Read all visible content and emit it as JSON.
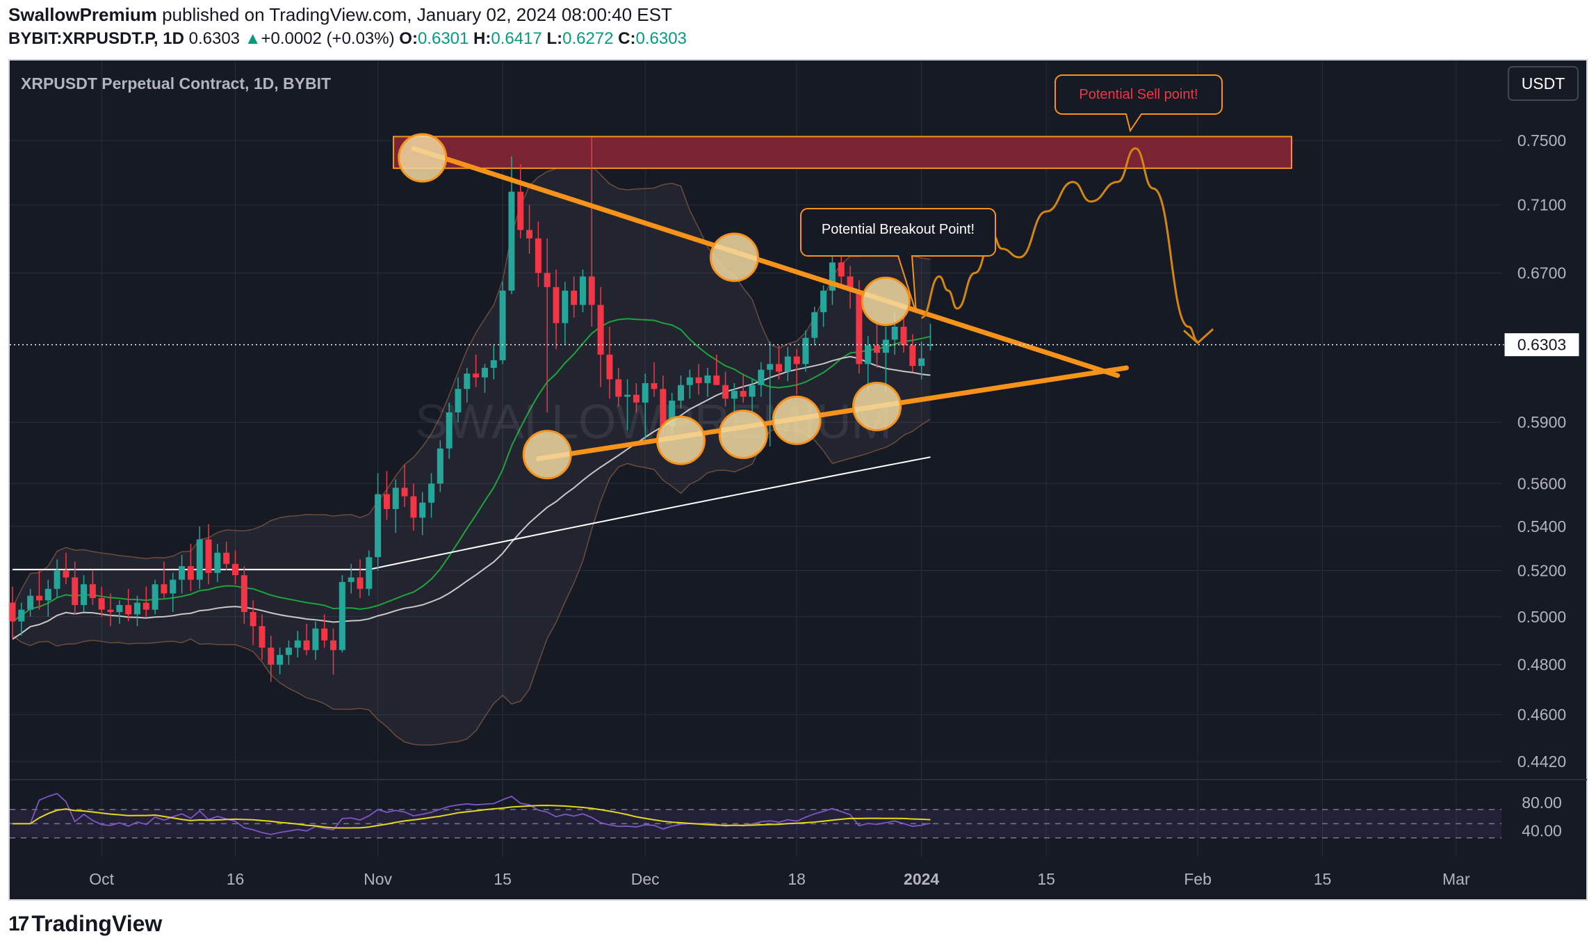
{
  "header": {
    "author": "SwallowPremium",
    "published_text": "published on TradingView.com, January 02, 2024 08:00:40 EST",
    "symbol": "BYBIT:XRPUSDT.P, 1D",
    "price": "0.6303",
    "change_arrow": "▲",
    "change": "+0.0002 (+0.03%)",
    "o_label": "O:",
    "o_value": "0.6301",
    "h_label": "H:",
    "h_value": "0.6417",
    "l_label": "L:",
    "l_value": "0.6272",
    "c_label": "C:",
    "c_value": "0.6303"
  },
  "chart_title": "XRPUSDT Perpetual Contract, 1D, BYBIT",
  "currency_button": "USDT",
  "current_price_label": "0.6303",
  "watermark": "SWALLOWPREMIUM",
  "annotations": {
    "sell": "Potential Sell point!",
    "breakout": "Potential Breakout Point!"
  },
  "footer": {
    "brand": "TradingView",
    "logo_glyph": "17"
  },
  "colors": {
    "background": "#161a25",
    "up": "#26a69a",
    "down": "#f23645",
    "trendline": "#f7931a",
    "zone_fill": "#7a2433",
    "zone_border": "#f7931a",
    "rsi_line": "#7e57c2",
    "rsi_ma": "#e5d81d"
  },
  "chart_data": {
    "type": "candlestick",
    "title": "XRPUSDT Perpetual Contract, 1D, BYBIT",
    "y_axis_ticks": [
      "0.7500",
      "0.7100",
      "0.6700",
      "0.5900",
      "0.5600",
      "0.5400",
      "0.5200",
      "0.5000",
      "0.4800",
      "0.4600",
      "0.4420"
    ],
    "x_axis_ticks": [
      "Oct",
      "16",
      "Nov",
      "15",
      "Dec",
      "18",
      "2024",
      "15",
      "Feb",
      "15",
      "Mar"
    ],
    "rsi_ticks": [
      "80.00",
      "40.00"
    ],
    "ylim": [
      0.432,
      0.768
    ],
    "scale": "log",
    "current_price": 0.6303,
    "resistance_zone": [
      0.7325,
      0.7525
    ],
    "descending_trendline": [
      {
        "date": "2023-11-05",
        "price": 0.745
      },
      {
        "date": "2024-01-23",
        "price": 0.614
      }
    ],
    "ascending_trendline": [
      {
        "date": "2023-11-19",
        "price": 0.572
      },
      {
        "date": "2024-01-24",
        "price": 0.618
      }
    ],
    "touch_points_upper": [
      {
        "date": "2023-11-06",
        "price": 0.739
      },
      {
        "date": "2023-12-11",
        "price": 0.679
      },
      {
        "date": "2023-12-28",
        "price": 0.654
      }
    ],
    "touch_points_lower": [
      {
        "date": "2023-11-20",
        "price": 0.574
      },
      {
        "date": "2023-12-05",
        "price": 0.581
      },
      {
        "date": "2023-12-12",
        "price": 0.584
      },
      {
        "date": "2023-12-18",
        "price": 0.591
      },
      {
        "date": "2023-12-27",
        "price": 0.598
      }
    ],
    "projected_path": [
      {
        "date": "2024-01-01",
        "price": 0.645
      },
      {
        "date": "2024-01-03",
        "price": 0.668
      },
      {
        "date": "2024-01-04",
        "price": 0.66
      },
      {
        "date": "2024-01-05",
        "price": 0.65
      },
      {
        "date": "2024-01-07",
        "price": 0.67
      },
      {
        "date": "2024-01-09",
        "price": 0.692
      },
      {
        "date": "2024-01-10",
        "price": 0.684
      },
      {
        "date": "2024-01-12",
        "price": 0.679
      },
      {
        "date": "2024-01-15",
        "price": 0.706
      },
      {
        "date": "2024-01-18",
        "price": 0.724
      },
      {
        "date": "2024-01-20",
        "price": 0.712
      },
      {
        "date": "2024-01-23",
        "price": 0.724
      },
      {
        "date": "2024-01-25",
        "price": 0.745
      },
      {
        "date": "2024-01-27",
        "price": 0.72
      },
      {
        "date": "2024-01-31",
        "price": 0.64
      },
      {
        "date": "2024-02-01",
        "price": 0.632
      }
    ],
    "candles": [
      {
        "date": "2023-09-21",
        "o": 0.506,
        "h": 0.513,
        "l": 0.491,
        "c": 0.498
      },
      {
        "date": "2023-09-22",
        "o": 0.498,
        "h": 0.506,
        "l": 0.492,
        "c": 0.503
      },
      {
        "date": "2023-09-23",
        "o": 0.503,
        "h": 0.512,
        "l": 0.5,
        "c": 0.509
      },
      {
        "date": "2023-09-24",
        "o": 0.509,
        "h": 0.52,
        "l": 0.503,
        "c": 0.507
      },
      {
        "date": "2023-09-25",
        "o": 0.507,
        "h": 0.516,
        "l": 0.5,
        "c": 0.512
      },
      {
        "date": "2023-09-26",
        "o": 0.512,
        "h": 0.525,
        "l": 0.508,
        "c": 0.52
      },
      {
        "date": "2023-09-27",
        "o": 0.52,
        "h": 0.528,
        "l": 0.514,
        "c": 0.517
      },
      {
        "date": "2023-09-28",
        "o": 0.517,
        "h": 0.524,
        "l": 0.501,
        "c": 0.505
      },
      {
        "date": "2023-09-29",
        "o": 0.505,
        "h": 0.518,
        "l": 0.502,
        "c": 0.514
      },
      {
        "date": "2023-09-30",
        "o": 0.514,
        "h": 0.52,
        "l": 0.505,
        "c": 0.508
      },
      {
        "date": "2023-10-01",
        "o": 0.508,
        "h": 0.513,
        "l": 0.5,
        "c": 0.503
      },
      {
        "date": "2023-10-02",
        "o": 0.503,
        "h": 0.51,
        "l": 0.496,
        "c": 0.502
      },
      {
        "date": "2023-10-03",
        "o": 0.502,
        "h": 0.507,
        "l": 0.497,
        "c": 0.505
      },
      {
        "date": "2023-10-04",
        "o": 0.505,
        "h": 0.512,
        "l": 0.498,
        "c": 0.501
      },
      {
        "date": "2023-10-05",
        "o": 0.501,
        "h": 0.509,
        "l": 0.496,
        "c": 0.506
      },
      {
        "date": "2023-10-06",
        "o": 0.506,
        "h": 0.513,
        "l": 0.5,
        "c": 0.503
      },
      {
        "date": "2023-10-07",
        "o": 0.503,
        "h": 0.516,
        "l": 0.501,
        "c": 0.514
      },
      {
        "date": "2023-10-08",
        "o": 0.514,
        "h": 0.524,
        "l": 0.508,
        "c": 0.51
      },
      {
        "date": "2023-10-09",
        "o": 0.51,
        "h": 0.519,
        "l": 0.502,
        "c": 0.516
      },
      {
        "date": "2023-10-10",
        "o": 0.516,
        "h": 0.527,
        "l": 0.51,
        "c": 0.522
      },
      {
        "date": "2023-10-11",
        "o": 0.522,
        "h": 0.532,
        "l": 0.511,
        "c": 0.516
      },
      {
        "date": "2023-10-12",
        "o": 0.516,
        "h": 0.54,
        "l": 0.512,
        "c": 0.534
      },
      {
        "date": "2023-10-13",
        "o": 0.534,
        "h": 0.541,
        "l": 0.514,
        "c": 0.519
      },
      {
        "date": "2023-10-14",
        "o": 0.519,
        "h": 0.532,
        "l": 0.515,
        "c": 0.528
      },
      {
        "date": "2023-10-15",
        "o": 0.528,
        "h": 0.533,
        "l": 0.52,
        "c": 0.523
      },
      {
        "date": "2023-10-16",
        "o": 0.523,
        "h": 0.529,
        "l": 0.514,
        "c": 0.518
      },
      {
        "date": "2023-10-17",
        "o": 0.518,
        "h": 0.522,
        "l": 0.497,
        "c": 0.502
      },
      {
        "date": "2023-10-18",
        "o": 0.502,
        "h": 0.507,
        "l": 0.488,
        "c": 0.496
      },
      {
        "date": "2023-10-19",
        "o": 0.496,
        "h": 0.501,
        "l": 0.482,
        "c": 0.487
      },
      {
        "date": "2023-10-20",
        "o": 0.487,
        "h": 0.492,
        "l": 0.473,
        "c": 0.48
      },
      {
        "date": "2023-10-21",
        "o": 0.48,
        "h": 0.487,
        "l": 0.476,
        "c": 0.484
      },
      {
        "date": "2023-10-22",
        "o": 0.484,
        "h": 0.49,
        "l": 0.48,
        "c": 0.487
      },
      {
        "date": "2023-10-23",
        "o": 0.487,
        "h": 0.494,
        "l": 0.483,
        "c": 0.49
      },
      {
        "date": "2023-10-24",
        "o": 0.49,
        "h": 0.497,
        "l": 0.484,
        "c": 0.486
      },
      {
        "date": "2023-10-25",
        "o": 0.486,
        "h": 0.498,
        "l": 0.482,
        "c": 0.495
      },
      {
        "date": "2023-10-26",
        "o": 0.495,
        "h": 0.501,
        "l": 0.487,
        "c": 0.49
      },
      {
        "date": "2023-10-27",
        "o": 0.49,
        "h": 0.495,
        "l": 0.476,
        "c": 0.486
      },
      {
        "date": "2023-10-28",
        "o": 0.486,
        "h": 0.518,
        "l": 0.485,
        "c": 0.515
      },
      {
        "date": "2023-10-29",
        "o": 0.515,
        "h": 0.523,
        "l": 0.51,
        "c": 0.517
      },
      {
        "date": "2023-10-30",
        "o": 0.517,
        "h": 0.525,
        "l": 0.508,
        "c": 0.512
      },
      {
        "date": "2023-10-31",
        "o": 0.512,
        "h": 0.529,
        "l": 0.509,
        "c": 0.526
      },
      {
        "date": "2023-11-01",
        "o": 0.526,
        "h": 0.565,
        "l": 0.52,
        "c": 0.555
      },
      {
        "date": "2023-11-02",
        "o": 0.555,
        "h": 0.566,
        "l": 0.543,
        "c": 0.548
      },
      {
        "date": "2023-11-03",
        "o": 0.548,
        "h": 0.562,
        "l": 0.537,
        "c": 0.558
      },
      {
        "date": "2023-11-04",
        "o": 0.558,
        "h": 0.569,
        "l": 0.549,
        "c": 0.554
      },
      {
        "date": "2023-11-05",
        "o": 0.554,
        "h": 0.56,
        "l": 0.538,
        "c": 0.544
      },
      {
        "date": "2023-11-06",
        "o": 0.544,
        "h": 0.556,
        "l": 0.536,
        "c": 0.551
      },
      {
        "date": "2023-11-07",
        "o": 0.551,
        "h": 0.565,
        "l": 0.544,
        "c": 0.56
      },
      {
        "date": "2023-11-08",
        "o": 0.56,
        "h": 0.581,
        "l": 0.556,
        "c": 0.577
      },
      {
        "date": "2023-11-09",
        "o": 0.577,
        "h": 0.6,
        "l": 0.572,
        "c": 0.595
      },
      {
        "date": "2023-11-10",
        "o": 0.595,
        "h": 0.613,
        "l": 0.59,
        "c": 0.607
      },
      {
        "date": "2023-11-11",
        "o": 0.607,
        "h": 0.618,
        "l": 0.6,
        "c": 0.615
      },
      {
        "date": "2023-11-12",
        "o": 0.615,
        "h": 0.625,
        "l": 0.608,
        "c": 0.613
      },
      {
        "date": "2023-11-13",
        "o": 0.613,
        "h": 0.62,
        "l": 0.605,
        "c": 0.618
      },
      {
        "date": "2023-11-14",
        "o": 0.618,
        "h": 0.63,
        "l": 0.612,
        "c": 0.622
      },
      {
        "date": "2023-11-15",
        "o": 0.622,
        "h": 0.665,
        "l": 0.62,
        "c": 0.66
      },
      {
        "date": "2023-11-16",
        "o": 0.66,
        "h": 0.74,
        "l": 0.658,
        "c": 0.718
      },
      {
        "date": "2023-11-17",
        "o": 0.718,
        "h": 0.735,
        "l": 0.69,
        "c": 0.695
      },
      {
        "date": "2023-11-18",
        "o": 0.695,
        "h": 0.71,
        "l": 0.681,
        "c": 0.69
      },
      {
        "date": "2023-11-19",
        "o": 0.69,
        "h": 0.7,
        "l": 0.662,
        "c": 0.67
      },
      {
        "date": "2023-11-20",
        "o": 0.67,
        "h": 0.69,
        "l": 0.595,
        "c": 0.662
      },
      {
        "date": "2023-11-21",
        "o": 0.662,
        "h": 0.672,
        "l": 0.628,
        "c": 0.642
      },
      {
        "date": "2023-11-22",
        "o": 0.642,
        "h": 0.665,
        "l": 0.63,
        "c": 0.66
      },
      {
        "date": "2023-11-23",
        "o": 0.66,
        "h": 0.668,
        "l": 0.645,
        "c": 0.652
      },
      {
        "date": "2023-11-24",
        "o": 0.652,
        "h": 0.672,
        "l": 0.648,
        "c": 0.668
      },
      {
        "date": "2023-11-25",
        "o": 0.668,
        "h": 0.752,
        "l": 0.64,
        "c": 0.652
      },
      {
        "date": "2023-11-26",
        "o": 0.652,
        "h": 0.662,
        "l": 0.608,
        "c": 0.625
      },
      {
        "date": "2023-11-27",
        "o": 0.625,
        "h": 0.64,
        "l": 0.602,
        "c": 0.612
      },
      {
        "date": "2023-11-28",
        "o": 0.612,
        "h": 0.618,
        "l": 0.598,
        "c": 0.603
      },
      {
        "date": "2023-11-29",
        "o": 0.603,
        "h": 0.612,
        "l": 0.586,
        "c": 0.604
      },
      {
        "date": "2023-11-30",
        "o": 0.604,
        "h": 0.61,
        "l": 0.595,
        "c": 0.6
      },
      {
        "date": "2023-12-01",
        "o": 0.6,
        "h": 0.615,
        "l": 0.58,
        "c": 0.61
      },
      {
        "date": "2023-12-02",
        "o": 0.61,
        "h": 0.621,
        "l": 0.603,
        "c": 0.607
      },
      {
        "date": "2023-12-03",
        "o": 0.607,
        "h": 0.614,
        "l": 0.584,
        "c": 0.588
      },
      {
        "date": "2023-12-04",
        "o": 0.588,
        "h": 0.605,
        "l": 0.584,
        "c": 0.601
      },
      {
        "date": "2023-12-05",
        "o": 0.601,
        "h": 0.614,
        "l": 0.597,
        "c": 0.609
      },
      {
        "date": "2023-12-06",
        "o": 0.609,
        "h": 0.617,
        "l": 0.602,
        "c": 0.613
      },
      {
        "date": "2023-12-07",
        "o": 0.613,
        "h": 0.62,
        "l": 0.604,
        "c": 0.61
      },
      {
        "date": "2023-12-08",
        "o": 0.61,
        "h": 0.618,
        "l": 0.603,
        "c": 0.614
      },
      {
        "date": "2023-12-09",
        "o": 0.614,
        "h": 0.625,
        "l": 0.609,
        "c": 0.609
      },
      {
        "date": "2023-12-10",
        "o": 0.609,
        "h": 0.616,
        "l": 0.598,
        "c": 0.602
      },
      {
        "date": "2023-12-11",
        "o": 0.602,
        "h": 0.61,
        "l": 0.594,
        "c": 0.606
      },
      {
        "date": "2023-12-12",
        "o": 0.606,
        "h": 0.615,
        "l": 0.6,
        "c": 0.603
      },
      {
        "date": "2023-12-13",
        "o": 0.603,
        "h": 0.612,
        "l": 0.595,
        "c": 0.609
      },
      {
        "date": "2023-12-14",
        "o": 0.609,
        "h": 0.621,
        "l": 0.603,
        "c": 0.617
      },
      {
        "date": "2023-12-15",
        "o": 0.617,
        "h": 0.632,
        "l": 0.578,
        "c": 0.62
      },
      {
        "date": "2023-12-16",
        "o": 0.62,
        "h": 0.63,
        "l": 0.612,
        "c": 0.616
      },
      {
        "date": "2023-12-17",
        "o": 0.616,
        "h": 0.629,
        "l": 0.611,
        "c": 0.624
      },
      {
        "date": "2023-12-18",
        "o": 0.624,
        "h": 0.628,
        "l": 0.604,
        "c": 0.62
      },
      {
        "date": "2023-12-19",
        "o": 0.62,
        "h": 0.638,
        "l": 0.616,
        "c": 0.634
      },
      {
        "date": "2023-12-20",
        "o": 0.634,
        "h": 0.651,
        "l": 0.63,
        "c": 0.648
      },
      {
        "date": "2023-12-21",
        "o": 0.648,
        "h": 0.663,
        "l": 0.64,
        "c": 0.66
      },
      {
        "date": "2023-12-22",
        "o": 0.66,
        "h": 0.69,
        "l": 0.652,
        "c": 0.676
      },
      {
        "date": "2023-12-23",
        "o": 0.676,
        "h": 0.683,
        "l": 0.662,
        "c": 0.668
      },
      {
        "date": "2023-12-24",
        "o": 0.668,
        "h": 0.674,
        "l": 0.65,
        "c": 0.66
      },
      {
        "date": "2023-12-25",
        "o": 0.66,
        "h": 0.666,
        "l": 0.615,
        "c": 0.62
      },
      {
        "date": "2023-12-26",
        "o": 0.62,
        "h": 0.635,
        "l": 0.606,
        "c": 0.63
      },
      {
        "date": "2023-12-27",
        "o": 0.63,
        "h": 0.642,
        "l": 0.618,
        "c": 0.626
      },
      {
        "date": "2023-12-28",
        "o": 0.626,
        "h": 0.64,
        "l": 0.605,
        "c": 0.633
      },
      {
        "date": "2023-12-29",
        "o": 0.633,
        "h": 0.648,
        "l": 0.625,
        "c": 0.64
      },
      {
        "date": "2023-12-30",
        "o": 0.64,
        "h": 0.646,
        "l": 0.626,
        "c": 0.63
      },
      {
        "date": "2023-12-31",
        "o": 0.63,
        "h": 0.636,
        "l": 0.616,
        "c": 0.619
      },
      {
        "date": "2024-01-01",
        "o": 0.619,
        "h": 0.632,
        "l": 0.612,
        "c": 0.623
      },
      {
        "date": "2024-01-02",
        "o": 0.6301,
        "h": 0.6417,
        "l": 0.6272,
        "c": 0.6303
      }
    ]
  }
}
